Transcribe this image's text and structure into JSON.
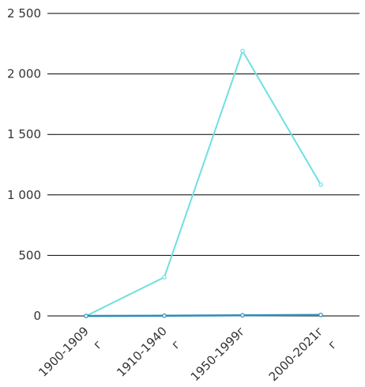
{
  "chart_data": {
    "type": "line",
    "categories": [
      [
        "1900-1909",
        "г"
      ],
      [
        "1910-1940",
        "г"
      ],
      [
        "1950-1999г"
      ],
      [
        "2000-2021г",
        "г"
      ]
    ],
    "y_ticks": [
      "0",
      "500",
      "1 000",
      "1 500",
      "2 000",
      "2 500"
    ],
    "ylim": [
      0,
      2500
    ],
    "grid": true,
    "series": [
      {
        "values": [
          0,
          320,
          2190,
          1085
        ],
        "color": "#6ee0e0"
      },
      {
        "values": [
          0,
          2,
          5,
          8
        ],
        "color": "#2b8cb8"
      }
    ]
  }
}
